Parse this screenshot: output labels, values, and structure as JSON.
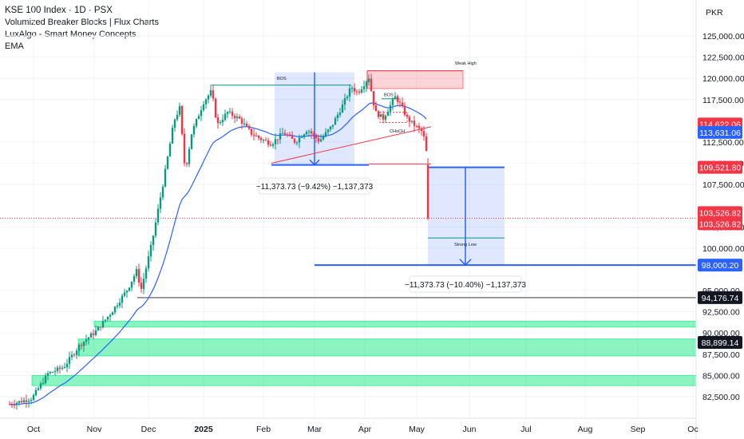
{
  "header": {
    "title": "KSE 100 Index · 1D · PSX",
    "indicators": [
      "Volumized Breaker Blocks | Flux Charts",
      "LuxAlgo - Smart Money Concepts",
      "EMA"
    ]
  },
  "currency": "PKR",
  "chart_data": {
    "type": "candlestick",
    "y_ticks": [
      "125,000.00",
      "122,500.00",
      "120,000.00",
      "117,500.00",
      "112,500.00",
      "110,000.00",
      "107,500.00",
      "102,500.00",
      "100,000.00",
      "95,000.00",
      "92,500.00",
      "90,000.00",
      "87,500.00",
      "85,000.00",
      "82,500.00"
    ],
    "y_tick_values": [
      125000,
      122500,
      120000,
      117500,
      112500,
      110000,
      107500,
      102500,
      100000,
      95000,
      92500,
      90000,
      87500,
      85000,
      82500
    ],
    "x_ticks": [
      "Oct",
      "Nov",
      "Dec",
      "2025",
      "Feb",
      "Mar",
      "Apr",
      "May",
      "Jun",
      "Jul",
      "Aug",
      "Sep",
      "Oc"
    ],
    "ylim": [
      81300,
      127000
    ],
    "price_labels": [
      {
        "text": "114,622.06",
        "value": 114622.06,
        "color": "#f23645"
      },
      {
        "text": "113,631.06",
        "value": 113631.06,
        "color": "#2962ff"
      },
      {
        "text": "109,521.80",
        "value": 109521.8,
        "color": "#f23645"
      },
      {
        "text": "103,526.82",
        "value": 103526.82,
        "color": "#f23645"
      },
      {
        "text": "103,526.82",
        "value": 103526.82,
        "color": "#f23645"
      },
      {
        "text": "98,000.20",
        "value": 98000.2,
        "color": "#2962ff"
      },
      {
        "text": "94,176.74",
        "value": 94176.74,
        "color": "#131722"
      },
      {
        "text": "88,899.14",
        "value": 88899.14,
        "color": "#131722"
      }
    ],
    "annotations": {
      "bos": "BOS",
      "weak_high": "Weak High",
      "strong_low": "Strong Low",
      "choch": "CHoCH",
      "measure_1": "−11,373.73 (−9.42%) −1,137,373",
      "measure_2": "−11,373.73 (−10.40%) −1,137,373"
    },
    "zones": [
      {
        "type": "supply",
        "from": 118800,
        "to": 120900,
        "color": "#f23645"
      },
      {
        "type": "demand",
        "from": 90700,
        "to": 91400,
        "color": "#00e676"
      },
      {
        "type": "demand",
        "from": 87300,
        "to": 89300,
        "color": "#00e676"
      },
      {
        "type": "demand",
        "from": 83800,
        "to": 85000,
        "color": "#00e676"
      }
    ],
    "colors": {
      "up": "#089981",
      "down": "#f23645",
      "ema": "#2962ff",
      "measure": "#2962ff"
    },
    "grid": true
  }
}
